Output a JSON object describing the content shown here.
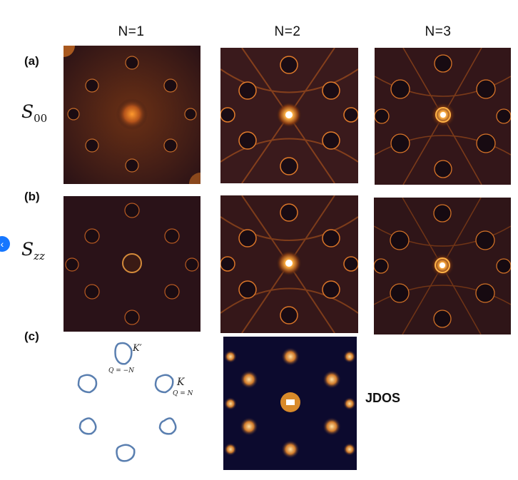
{
  "columns": [
    "N=1",
    "N=2",
    "N=3"
  ],
  "rows": {
    "a": "(a)",
    "b": "(b)",
    "c": "(c)"
  },
  "equations": {
    "s00_main": "S",
    "s00_sub": "00",
    "szz_main": "S",
    "szz_sub": "zz"
  },
  "fermi_surface": {
    "k_prime": "K′",
    "q_minus": "Q = −N",
    "k": "K",
    "q_plus": "Q = N"
  },
  "jdos_label": "JDOS",
  "colors": {
    "panel_dark": "#1a0d1c",
    "glow": "#ff9a2e",
    "jdos_bg": "#0c0a2e",
    "pocket": "#5a7fb0",
    "side_button": "#1677ff"
  },
  "side_button_icon": "chevron-left-icon"
}
